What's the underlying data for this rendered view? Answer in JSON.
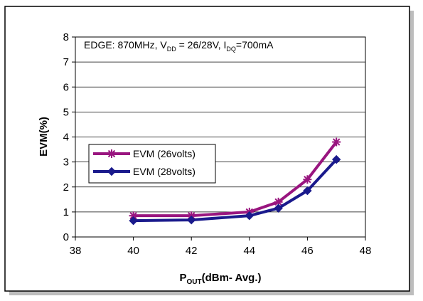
{
  "chart_data": {
    "type": "line",
    "annotation": {
      "prefix": "EDGE:  870MHz, V",
      "vdd_sub": "DD",
      "vdd_value": " = 26/28V, I",
      "idq_sub": "DQ",
      "idq_value": "=700mA"
    },
    "xlabel": {
      "main": "P",
      "sub": "OUT",
      "rest": "(dBm- Avg.)"
    },
    "ylabel": "EVM(%)",
    "xlim": [
      38,
      48
    ],
    "ylim": [
      0,
      8
    ],
    "x_ticks": [
      "38",
      "40",
      "42",
      "44",
      "46",
      "48"
    ],
    "y_ticks": [
      "0",
      "1",
      "2",
      "3",
      "4",
      "5",
      "6",
      "7",
      "8"
    ],
    "grid": "horizontal",
    "legend_position": "center-left",
    "series": [
      {
        "name": "EVM (26volts)",
        "color": "#99157F",
        "marker": "star",
        "x": [
          40,
          42,
          44,
          45,
          46,
          47
        ],
        "y": [
          0.85,
          0.85,
          1.0,
          1.4,
          2.3,
          3.8
        ]
      },
      {
        "name": "EVM (28volts)",
        "color": "#1A1A8C",
        "marker": "diamond",
        "x": [
          40,
          42,
          44,
          45,
          46,
          47
        ],
        "y": [
          0.65,
          0.68,
          0.85,
          1.15,
          1.85,
          3.1
        ]
      }
    ]
  }
}
